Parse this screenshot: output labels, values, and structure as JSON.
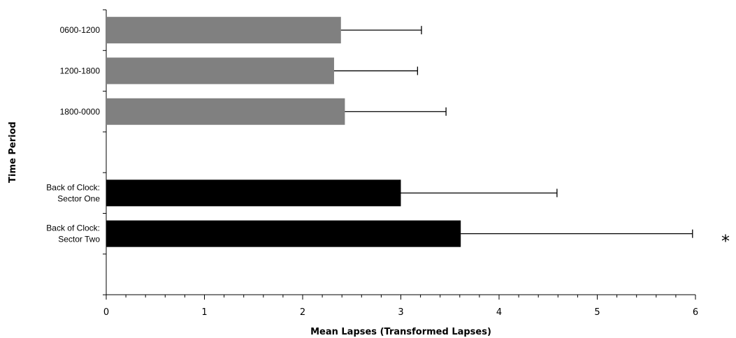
{
  "chart_data": {
    "type": "bar",
    "orientation": "horizontal",
    "xlabel": "Mean Lapses (Transformed Lapses)",
    "ylabel": "Time Period",
    "xlim": [
      0,
      6
    ],
    "xticks": [
      "0",
      "1",
      "2",
      "3",
      "4",
      "5",
      "6"
    ],
    "grid": false,
    "bars": [
      {
        "label": [
          "0600-1200"
        ],
        "value": 2.39,
        "error_upper": 3.21,
        "color": "#808080"
      },
      {
        "label": [
          "1200-1800"
        ],
        "value": 2.32,
        "error_upper": 3.17,
        "color": "#808080"
      },
      {
        "label": [
          "1800-0000"
        ],
        "value": 2.43,
        "error_upper": 3.46,
        "color": "#808080"
      },
      {
        "label": [
          "Back of Clock:",
          "Sector One"
        ],
        "value": 3.0,
        "error_upper": 4.59,
        "color": "#000000"
      },
      {
        "label": [
          "Back of Clock:",
          "Sector Two"
        ],
        "value": 3.61,
        "error_upper": 5.97,
        "color": "#000000",
        "annotation": "*"
      }
    ]
  }
}
